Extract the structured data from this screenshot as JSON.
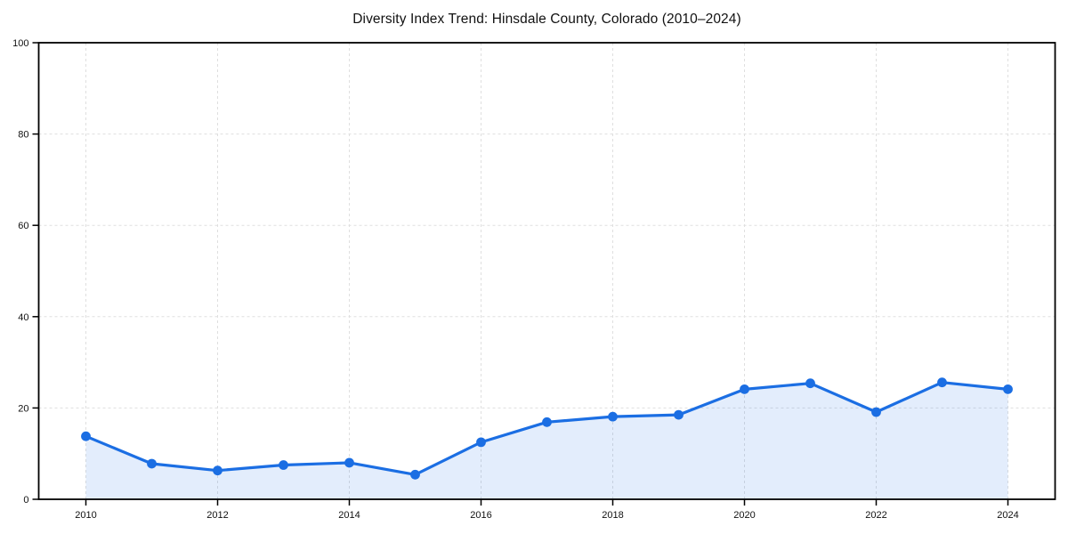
{
  "page": {
    "background": "#ffffff"
  },
  "chart_data": {
    "type": "area",
    "title": "Diversity Index Trend: Hinsdale County, Colorado (2010–2024)",
    "x": [
      2010,
      2011,
      2012,
      2013,
      2014,
      2015,
      2016,
      2017,
      2018,
      2019,
      2020,
      2021,
      2022,
      2023,
      2024
    ],
    "series": [
      {
        "name": "Diversity Index",
        "values": [
          13.8,
          7.8,
          6.3,
          7.5,
          8.0,
          5.4,
          12.5,
          16.9,
          18.1,
          18.5,
          24.1,
          25.4,
          19.1,
          25.6,
          24.1
        ]
      }
    ],
    "xlabel": "",
    "ylabel": "",
    "ylim": [
      0,
      100
    ],
    "yticks": [
      0,
      20,
      40,
      60,
      80,
      100
    ],
    "xticks": [
      2010,
      2012,
      2014,
      2016,
      2018,
      2020,
      2022,
      2024
    ],
    "grid": true,
    "grid_style": "dashed",
    "legend_position": "none",
    "marker": "circle",
    "colors": {
      "line": "#1b6ee3",
      "marker": "#1b6ee3",
      "fill": "rgba(27,110,227,0.12)",
      "grid": "#dfdfdf",
      "axis": "#000000",
      "tick_text": "#111111"
    }
  }
}
